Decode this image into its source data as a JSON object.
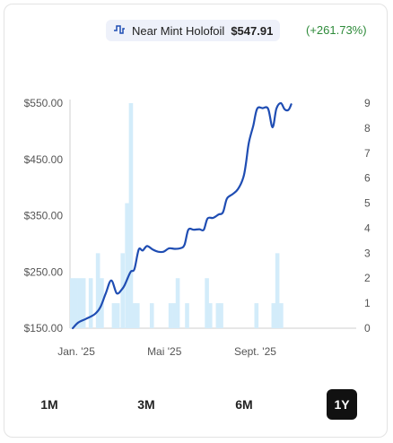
{
  "legend": {
    "icon": "line-chart-icon",
    "label": "Near Mint Holofoil",
    "price": "$547.91",
    "change": "(+261.73%)",
    "change_color": "#2e8b3a"
  },
  "colors": {
    "line": "#1f4db3",
    "bars": "#d3ecfa"
  },
  "ranges": [
    {
      "label": "1M",
      "active": false
    },
    {
      "label": "3M",
      "active": false
    },
    {
      "label": "6M",
      "active": false
    },
    {
      "label": "1Y",
      "active": true
    }
  ],
  "chart_data": {
    "type": "line",
    "title": "",
    "xlabel": "",
    "ylabel": "",
    "x_ticks": [
      {
        "label": "Jan. '25",
        "x": 0.5
      },
      {
        "label": "Mai '25",
        "x": 16.5
      },
      {
        "label": "Sept. '25",
        "x": 33
      }
    ],
    "x_range": [
      0,
      52
    ],
    "y_left": {
      "ticks": [
        "$550.00",
        "$450.00",
        "$350.00",
        "$250.00",
        "$150.00"
      ],
      "range": [
        150,
        550
      ]
    },
    "y_right": {
      "ticks": [
        0,
        1,
        2,
        3,
        4,
        5,
        6,
        7,
        8,
        9
      ],
      "range": [
        0,
        9
      ]
    },
    "series": [
      {
        "type": "line",
        "axis": "left",
        "points": [
          [
            0.5,
            150
          ],
          [
            1.5,
            160
          ],
          [
            3,
            167
          ],
          [
            4.5,
            175
          ],
          [
            5.5,
            187
          ],
          [
            6.5,
            212
          ],
          [
            7.5,
            235
          ],
          [
            8.5,
            212
          ],
          [
            9.5,
            220
          ],
          [
            10,
            228
          ],
          [
            11,
            250
          ],
          [
            11.7,
            255
          ],
          [
            12.5,
            290
          ],
          [
            13.2,
            288
          ],
          [
            14,
            296
          ],
          [
            15,
            290
          ],
          [
            16,
            286
          ],
          [
            17,
            286
          ],
          [
            18,
            292
          ],
          [
            19,
            291
          ],
          [
            20,
            292
          ],
          [
            20.8,
            298
          ],
          [
            21.5,
            325
          ],
          [
            22.5,
            325
          ],
          [
            23.5,
            326
          ],
          [
            24.3,
            325
          ],
          [
            25,
            345
          ],
          [
            26,
            346
          ],
          [
            27,
            352
          ],
          [
            27.8,
            356
          ],
          [
            28.5,
            380
          ],
          [
            29.5,
            388
          ],
          [
            30.5,
            397
          ],
          [
            31.5,
            418
          ],
          [
            32,
            445
          ],
          [
            32.5,
            480
          ],
          [
            33.3,
            510
          ],
          [
            34,
            540
          ],
          [
            35,
            541
          ],
          [
            36,
            540
          ],
          [
            36.8,
            507
          ],
          [
            37.5,
            540
          ],
          [
            38.3,
            550
          ],
          [
            39,
            539
          ],
          [
            39.7,
            538
          ],
          [
            40.2,
            548
          ]
        ]
      },
      {
        "type": "bar",
        "axis": "right",
        "points": [
          [
            0,
            2
          ],
          [
            0.7,
            2
          ],
          [
            1.4,
            2
          ],
          [
            2.1,
            2
          ],
          [
            3.4,
            2
          ],
          [
            4.7,
            3
          ],
          [
            5.4,
            2
          ],
          [
            7.6,
            1
          ],
          [
            8.3,
            1
          ],
          [
            9.2,
            3
          ],
          [
            10,
            5
          ],
          [
            10.7,
            9
          ],
          [
            11.3,
            1
          ],
          [
            11.9,
            1
          ],
          [
            14.5,
            1
          ],
          [
            17.9,
            1
          ],
          [
            18.6,
            1
          ],
          [
            19.2,
            2
          ],
          [
            20.9,
            1
          ],
          [
            24.5,
            2
          ],
          [
            25.1,
            1
          ],
          [
            26.5,
            1
          ],
          [
            27.1,
            1
          ],
          [
            33.5,
            1
          ],
          [
            36.6,
            1
          ],
          [
            37.3,
            3
          ],
          [
            38,
            1
          ]
        ]
      }
    ]
  }
}
